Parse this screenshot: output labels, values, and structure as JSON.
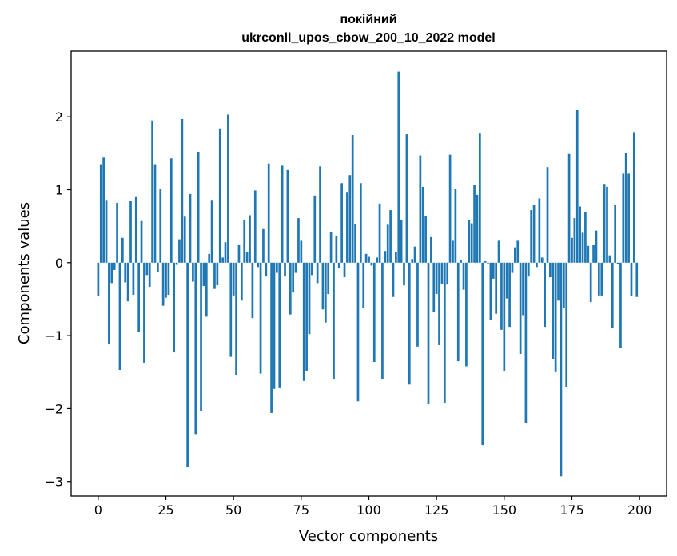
{
  "chart_data": {
    "type": "bar",
    "title_line1": "покійний",
    "title_line2": "ukrconll_upos_cbow_200_10_2022 model",
    "xlabel": "Vector components",
    "ylabel": "Components values",
    "xlim": [
      -10,
      210
    ],
    "ylim": [
      -3.2,
      2.9
    ],
    "xticks": [
      0,
      25,
      50,
      75,
      100,
      125,
      150,
      175,
      200
    ],
    "yticks": [
      -3,
      -2,
      -1,
      0,
      1,
      2
    ],
    "xtick_labels": [
      "0",
      "25",
      "50",
      "75",
      "100",
      "125",
      "150",
      "175",
      "200"
    ],
    "ytick_labels": [
      "−3",
      "−2",
      "−1",
      "0",
      "1",
      "2"
    ],
    "grid": false,
    "bar_color": "#1f77b4",
    "x": [
      0,
      1,
      2,
      3,
      4,
      5,
      6,
      7,
      8,
      9,
      10,
      11,
      12,
      13,
      14,
      15,
      16,
      17,
      18,
      19,
      20,
      21,
      22,
      23,
      24,
      25,
      26,
      27,
      28,
      29,
      30,
      31,
      32,
      33,
      34,
      35,
      36,
      37,
      38,
      39,
      40,
      41,
      42,
      43,
      44,
      45,
      46,
      47,
      48,
      49,
      50,
      51,
      52,
      53,
      54,
      55,
      56,
      57,
      58,
      59,
      60,
      61,
      62,
      63,
      64,
      65,
      66,
      67,
      68,
      69,
      70,
      71,
      72,
      73,
      74,
      75,
      76,
      77,
      78,
      79,
      80,
      81,
      82,
      83,
      84,
      85,
      86,
      87,
      88,
      89,
      90,
      91,
      92,
      93,
      94,
      95,
      96,
      97,
      98,
      99,
      100,
      101,
      102,
      103,
      104,
      105,
      106,
      107,
      108,
      109,
      110,
      111,
      112,
      113,
      114,
      115,
      116,
      117,
      118,
      119,
      120,
      121,
      122,
      123,
      124,
      125,
      126,
      127,
      128,
      129,
      130,
      131,
      132,
      133,
      134,
      135,
      136,
      137,
      138,
      139,
      140,
      141,
      142,
      143,
      144,
      145,
      146,
      147,
      148,
      149,
      150,
      151,
      152,
      153,
      154,
      155,
      156,
      157,
      158,
      159,
      160,
      161,
      162,
      163,
      164,
      165,
      166,
      167,
      168,
      169,
      170,
      171,
      172,
      173,
      174,
      175,
      176,
      177,
      178,
      179,
      180,
      181,
      182,
      183,
      184,
      185,
      186,
      187,
      188,
      189,
      190,
      191,
      192,
      193,
      194,
      195,
      196,
      197,
      198,
      199
    ],
    "values": [
      -0.46,
      1.35,
      1.44,
      0.86,
      -1.11,
      -0.28,
      -0.1,
      0.82,
      -1.47,
      0.34,
      -0.27,
      -0.53,
      0.85,
      -0.44,
      0.91,
      -0.95,
      0.57,
      -1.37,
      -0.17,
      -0.33,
      1.95,
      1.35,
      -0.13,
      1.01,
      -0.59,
      -0.48,
      -0.44,
      1.43,
      -1.23,
      -0.03,
      0.32,
      1.97,
      0.63,
      -2.8,
      0.94,
      -0.26,
      -2.35,
      1.52,
      -2.03,
      -0.32,
      -0.74,
      0.12,
      0.86,
      -0.36,
      -0.31,
      1.84,
      0.07,
      0.28,
      2.03,
      -1.29,
      -0.45,
      -1.54,
      0.24,
      -0.52,
      0.58,
      0.14,
      0.65,
      -0.76,
      0.99,
      -0.06,
      -1.52,
      0.46,
      -0.19,
      1.36,
      -2.06,
      -1.73,
      -0.14,
      -1.72,
      1.33,
      -0.19,
      1.27,
      -0.71,
      -0.41,
      -0.14,
      0.61,
      0.3,
      -1.62,
      -1.48,
      -0.98,
      -0.17,
      0.92,
      -0.28,
      1.32,
      -0.64,
      -0.82,
      -0.43,
      0.42,
      -1.6,
      0.36,
      -0.08,
      1.09,
      -0.2,
      0.97,
      1.2,
      1.75,
      0.53,
      -1.9,
      1.09,
      -0.62,
      0.12,
      0.08,
      -0.04,
      -1.36,
      0.07,
      0.81,
      -1.6,
      0.16,
      0.52,
      0.72,
      -0.47,
      0.15,
      2.62,
      0.59,
      -0.31,
      1.76,
      -1.67,
      0.05,
      0.22,
      -1.15,
      1.47,
      1.04,
      0.64,
      -1.94,
      0.35,
      -0.68,
      -0.43,
      -1.13,
      -0.29,
      -1.92,
      -0.3,
      1.48,
      0.3,
      1.01,
      -1.35,
      0.03,
      -0.37,
      -1.42,
      0.58,
      0.54,
      1.07,
      0.93,
      1.77,
      -2.5,
      0.02,
      -0.01,
      -0.79,
      -0.22,
      -0.7,
      0.3,
      -0.92,
      -1.48,
      -0.49,
      -0.88,
      -0.14,
      0.21,
      0.3,
      -1.25,
      -0.72,
      -2.2,
      -0.19,
      0.72,
      0.79,
      -0.06,
      0.88,
      0.07,
      -0.88,
      1.31,
      -0.2,
      -1.32,
      -1.5,
      -0.52,
      -2.93,
      -0.62,
      -1.7,
      1.49,
      0.34,
      0.61,
      2.09,
      0.77,
      0.41,
      0.69,
      0.23,
      -0.54,
      0.24,
      0.44,
      -0.45,
      -0.45,
      1.08,
      1.04,
      0.1,
      -0.89,
      0.79,
      -0.02,
      -1.17,
      1.22,
      1.5,
      1.22,
      -0.46,
      1.79,
      -0.47
    ]
  }
}
